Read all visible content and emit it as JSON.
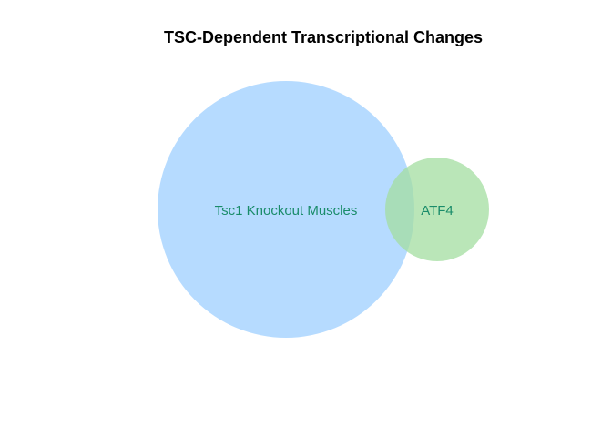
{
  "diagram": {
    "title": "TSC-Dependent Transcriptional Changes",
    "type": "venn",
    "label_color": "#1a8c6a",
    "sets": [
      {
        "label": "Tsc1 Knockout Muscles",
        "color": "#9ecfff",
        "opacity": 0.75
      },
      {
        "label": "ATF4",
        "color": "#a3dda0",
        "opacity": 0.75
      }
    ]
  }
}
